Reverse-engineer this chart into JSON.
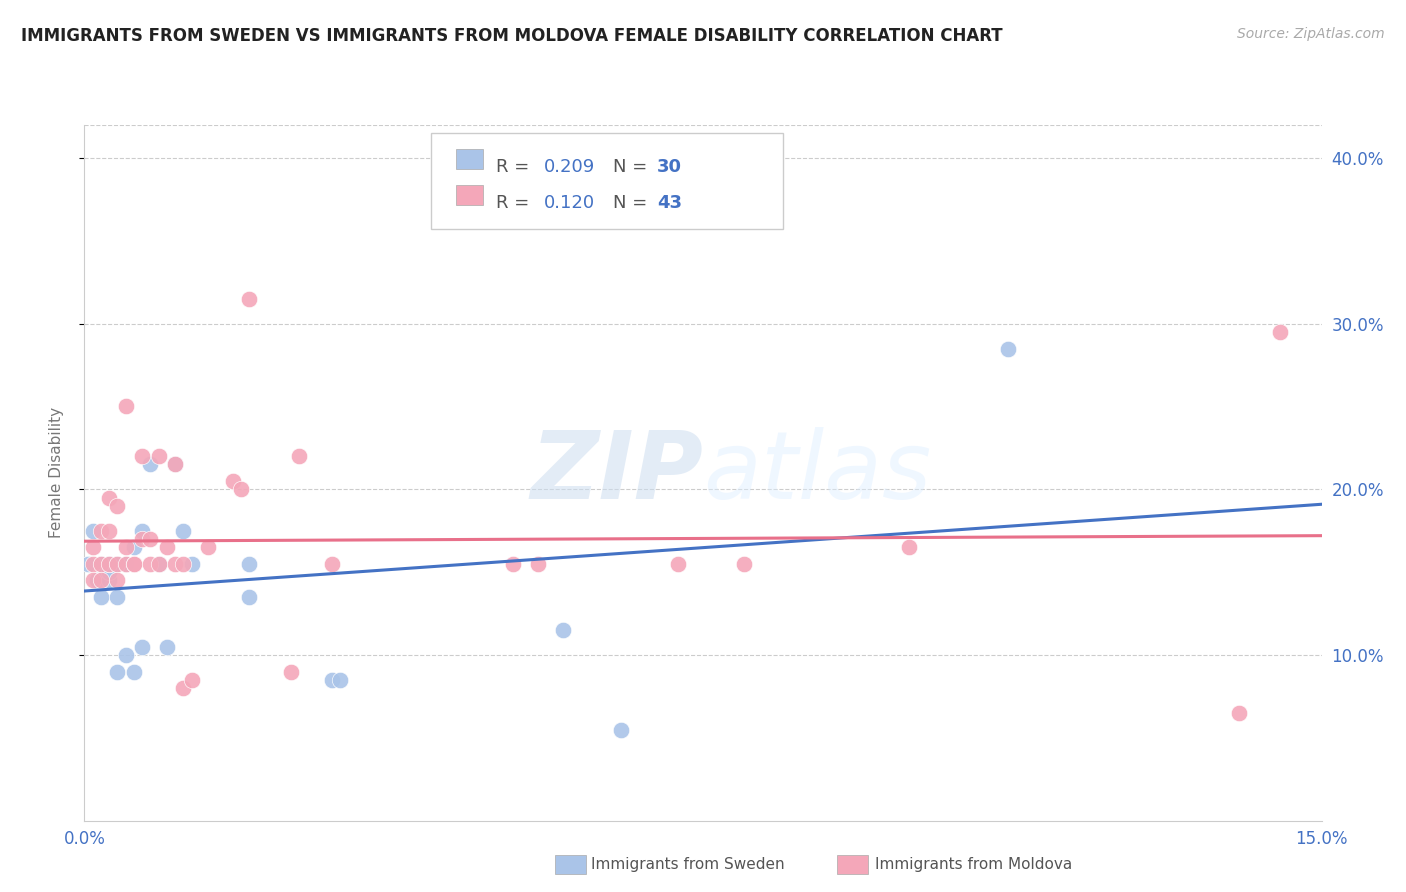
{
  "title": "IMMIGRANTS FROM SWEDEN VS IMMIGRANTS FROM MOLDOVA FEMALE DISABILITY CORRELATION CHART",
  "source": "Source: ZipAtlas.com",
  "ylabel": "Female Disability",
  "right_yticks": [
    "40.0%",
    "30.0%",
    "20.0%",
    "10.0%"
  ],
  "right_ytick_vals": [
    0.4,
    0.3,
    0.2,
    0.1
  ],
  "xlim": [
    0.0,
    0.15
  ],
  "ylim": [
    0.0,
    0.42
  ],
  "watermark": "ZIPatlas",
  "sweden_color": "#aac4e8",
  "moldova_color": "#f4a7b9",
  "sweden_line_color": "#4472c4",
  "moldova_line_color": "#e8708a",
  "sweden_R": 0.209,
  "sweden_N": 30,
  "moldova_R": 0.12,
  "moldova_N": 43,
  "sweden_x": [
    0.0005,
    0.001,
    0.0015,
    0.002,
    0.002,
    0.003,
    0.003,
    0.003,
    0.004,
    0.004,
    0.004,
    0.005,
    0.005,
    0.006,
    0.006,
    0.007,
    0.007,
    0.008,
    0.009,
    0.01,
    0.011,
    0.012,
    0.013,
    0.02,
    0.02,
    0.03,
    0.031,
    0.058,
    0.065,
    0.112
  ],
  "sweden_y": [
    0.155,
    0.175,
    0.145,
    0.155,
    0.135,
    0.145,
    0.15,
    0.155,
    0.135,
    0.09,
    0.155,
    0.1,
    0.155,
    0.09,
    0.165,
    0.175,
    0.105,
    0.215,
    0.155,
    0.105,
    0.215,
    0.175,
    0.155,
    0.155,
    0.135,
    0.085,
    0.085,
    0.115,
    0.055,
    0.285
  ],
  "moldova_x": [
    0.001,
    0.001,
    0.001,
    0.002,
    0.002,
    0.002,
    0.003,
    0.003,
    0.003,
    0.004,
    0.004,
    0.004,
    0.005,
    0.005,
    0.005,
    0.006,
    0.006,
    0.007,
    0.007,
    0.008,
    0.008,
    0.009,
    0.009,
    0.01,
    0.011,
    0.011,
    0.012,
    0.012,
    0.013,
    0.015,
    0.018,
    0.019,
    0.02,
    0.025,
    0.026,
    0.03,
    0.052,
    0.055,
    0.072,
    0.08,
    0.1,
    0.14,
    0.145
  ],
  "moldova_y": [
    0.155,
    0.145,
    0.165,
    0.155,
    0.175,
    0.145,
    0.155,
    0.175,
    0.195,
    0.155,
    0.19,
    0.145,
    0.155,
    0.165,
    0.25,
    0.155,
    0.155,
    0.17,
    0.22,
    0.17,
    0.155,
    0.155,
    0.22,
    0.165,
    0.215,
    0.155,
    0.155,
    0.08,
    0.085,
    0.165,
    0.205,
    0.2,
    0.315,
    0.09,
    0.22,
    0.155,
    0.155,
    0.155,
    0.155,
    0.155,
    0.165,
    0.065,
    0.295
  ]
}
